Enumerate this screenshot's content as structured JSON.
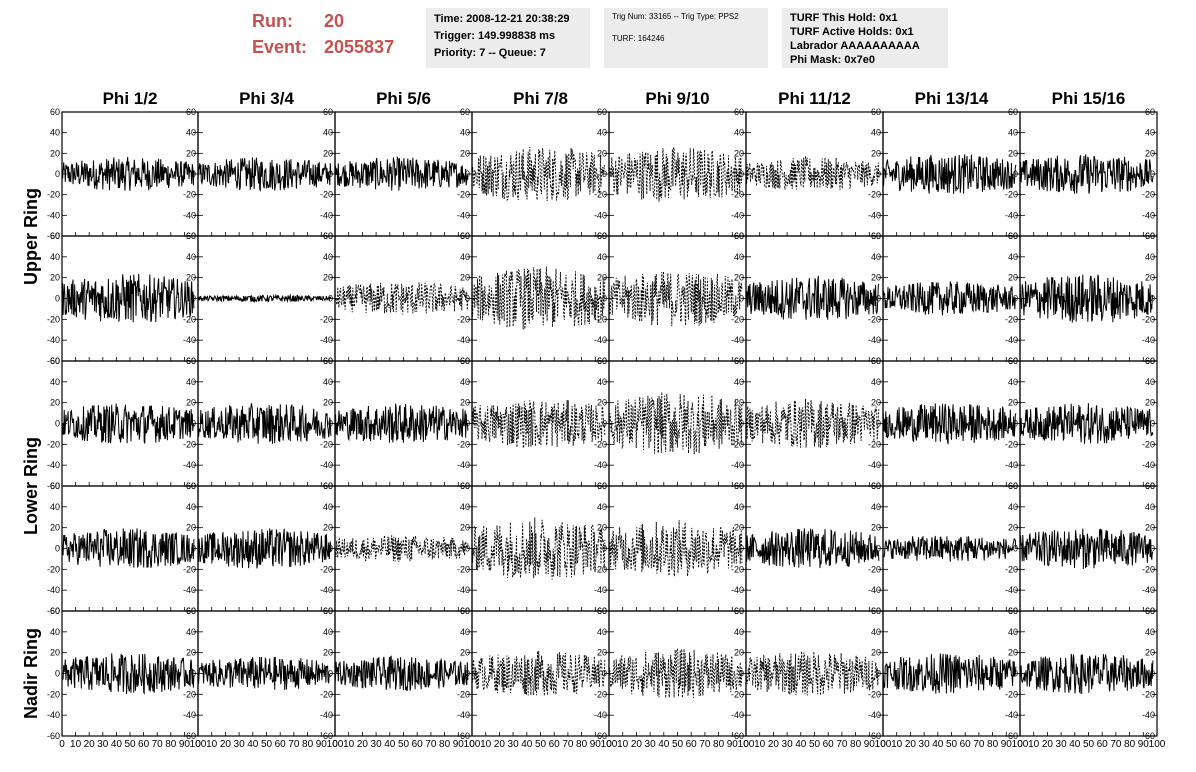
{
  "header": {
    "run_label": "Run:",
    "run_value": "20",
    "event_label": "Event:",
    "event_value": "2055837",
    "time_text": "Time: 2008-12-21 20:38:29",
    "trigger_text": "Trigger: 149.998838 ms",
    "priority_text": "Priority: 7 -- Queue: 7",
    "trig_text": "Trig Num: 33165 -- Trig Type: PPS2",
    "turf_text": "TURF: 164246",
    "turf_hold_text": "TURF This Hold: 0x1",
    "turf_active_text": "TURF Active Holds: 0x1",
    "labrador_text": "Labrador AAAAAAAAAA",
    "phimask_text": "Phi Mask: 0x7e0"
  },
  "colors": {
    "run_text": "#c8504f",
    "panel_bg": "#ececec",
    "trace": "#000000"
  },
  "chart_data": {
    "type": "line",
    "title": "",
    "columns": [
      "Phi 1/2",
      "Phi 3/4",
      "Phi 5/6",
      "Phi 7/8",
      "Phi 9/10",
      "Phi 11/12",
      "Phi 13/14",
      "Phi 15/16"
    ],
    "rows": [
      "Upper Ring",
      "Upper Ring",
      "Lower Ring",
      "Lower Ring",
      "Nadir Ring"
    ],
    "row_group_labels": [
      "Upper Ring",
      "Lower Ring",
      "Nadir Ring"
    ],
    "xlim": [
      0,
      100
    ],
    "ylim": [
      -60,
      60
    ],
    "x_ticks": [
      0,
      10,
      20,
      30,
      40,
      50,
      60,
      70,
      80,
      90,
      100
    ],
    "y_ticks": [
      -60,
      -40,
      -20,
      0,
      20,
      40,
      60
    ],
    "approx_amplitude": [
      [
        15,
        15,
        15,
        25,
        25,
        15,
        18,
        18
      ],
      [
        22,
        3,
        15,
        28,
        25,
        20,
        15,
        22
      ],
      [
        18,
        18,
        18,
        22,
        28,
        22,
        18,
        18
      ],
      [
        18,
        18,
        12,
        28,
        25,
        18,
        12,
        18
      ],
      [
        18,
        15,
        15,
        20,
        22,
        20,
        18,
        18
      ]
    ],
    "dashed_traces": [
      [
        false,
        false,
        false,
        true,
        true,
        true,
        false,
        false
      ],
      [
        false,
        false,
        true,
        true,
        true,
        false,
        false,
        false
      ],
      [
        false,
        false,
        false,
        true,
        true,
        true,
        false,
        false
      ],
      [
        false,
        false,
        true,
        true,
        true,
        false,
        false,
        false
      ],
      [
        false,
        false,
        false,
        true,
        true,
        true,
        false,
        false
      ]
    ]
  }
}
